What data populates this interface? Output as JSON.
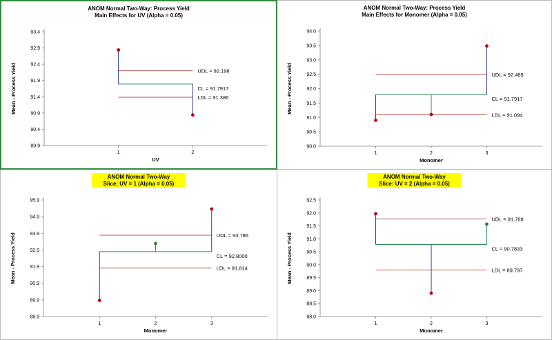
{
  "chart_data": [
    {
      "type": "line",
      "subtype": "anom",
      "title": "ANOM Normal Two-Way: Process Yield",
      "subtitle": "Main Effects for UV (Alpha = 0.05)",
      "title_highlight": false,
      "xlabel": "UV",
      "ylabel": "Mean - Process Yield",
      "categories": [
        "1",
        "2"
      ],
      "values": [
        92.84,
        90.84
      ],
      "ylim": [
        89.9,
        93.4
      ],
      "yticks": [
        "89.9",
        "90.4",
        "90.9",
        "91.4",
        "91.9",
        "92.4",
        "92.9",
        "93.4"
      ],
      "limits": {
        "udl": 92.198,
        "cl": 91.7917,
        "ldl": 91.386,
        "udl_label": "UDL = 92.198",
        "cl_label": "CL = 91.7917",
        "ldl_label": "LDL = 91.386"
      },
      "point_colors": [
        "#c00000",
        "#c00000"
      ]
    },
    {
      "type": "line",
      "subtype": "anom",
      "title": "ANOM Normal Two-Way: Process Yield",
      "subtitle": "Main Effects for Monomer (Alpha = 0.05)",
      "title_highlight": false,
      "xlabel": "Monomer",
      "ylabel": "Mean - Process Yield",
      "categories": [
        "1",
        "2",
        "3"
      ],
      "values": [
        90.9,
        91.1,
        93.48
      ],
      "ylim": [
        90.0,
        94.0
      ],
      "yticks": [
        "90.0",
        "90.5",
        "91.0",
        "91.5",
        "92.0",
        "92.5",
        "93.0",
        "93.5",
        "94.0"
      ],
      "limits": {
        "udl": 92.489,
        "cl": 91.7917,
        "ldl": 91.094,
        "udl_label": "UDL = 92.489",
        "cl_label": "CL = 91.7917",
        "ldl_label": "LDL = 91.094"
      },
      "point_colors": [
        "#c00000",
        "#c00000",
        "#c00000"
      ]
    },
    {
      "type": "line",
      "subtype": "anom",
      "title": "ANOM Normal Two-Way",
      "subtitle": "Slice: UV = 1 (Alpha = 0.05)",
      "title_highlight": true,
      "xlabel": "Monomer",
      "ylabel": "Mean - Process Yield",
      "categories": [
        "1",
        "2",
        "3"
      ],
      "values": [
        89.87,
        93.29,
        95.36
      ],
      "ylim": [
        88.9,
        95.9
      ],
      "yticks": [
        "88.9",
        "89.9",
        "90.9",
        "91.9",
        "92.9",
        "93.9",
        "94.9",
        "95.9"
      ],
      "limits": {
        "udl": 93.786,
        "cl": 92.8,
        "ldl": 91.814,
        "udl_label": "UDL = 93.786",
        "cl_label": "CL = 92.8000",
        "ldl_label": "LDL = 91.814"
      },
      "point_colors": [
        "#c00000",
        "#2e7d32",
        "#c00000"
      ]
    },
    {
      "type": "line",
      "subtype": "anom",
      "title": "ANOM Normal Two-Way",
      "subtitle": "Slice: UV = 2 (Alpha = 0.05)",
      "title_highlight": true,
      "xlabel": "Monomer",
      "ylabel": "Mean - Process Yield",
      "categories": [
        "1",
        "2",
        "3"
      ],
      "values": [
        91.97,
        88.9,
        91.57
      ],
      "ylim": [
        88.0,
        92.5
      ],
      "yticks": [
        "88.0",
        "88.5",
        "89.0",
        "89.5",
        "90.0",
        "90.5",
        "91.0",
        "91.5",
        "92.0",
        "92.5"
      ],
      "limits": {
        "udl": 91.769,
        "cl": 90.7833,
        "ldl": 89.797,
        "udl_label": "UDL = 91.769",
        "cl_label": "CL = 90.7833",
        "ldl_label": "LDL = 89.797"
      },
      "point_colors": [
        "#c00000",
        "#c00000",
        "#2e7d32"
      ]
    }
  ],
  "colors": {
    "limit_line": "#b5504a",
    "center_line": "#2e8b57",
    "drop_line": "#2e3a8c",
    "axis": "#808080",
    "highlight": "#ffff00"
  }
}
